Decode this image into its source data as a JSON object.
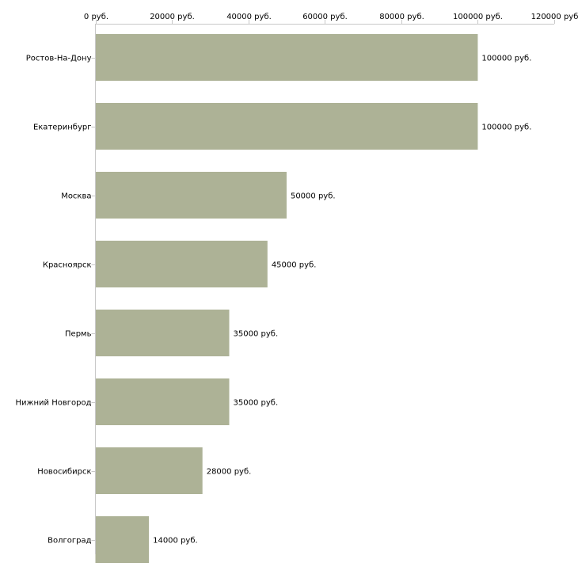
{
  "chart_data": {
    "type": "bar",
    "orientation": "horizontal",
    "categories": [
      "Ростов-На-Дону",
      "Екатеринбург",
      "Москва",
      "Красноярск",
      "Пермь",
      "Нижний Новгород",
      "Новосибирск",
      "Волгоград"
    ],
    "values": [
      100000,
      100000,
      50000,
      45000,
      35000,
      35000,
      28000,
      14000
    ],
    "value_labels": [
      "100000 руб.",
      "100000 руб.",
      "50000 руб.",
      "45000 руб.",
      "35000 руб.",
      "35000 руб.",
      "28000 руб.",
      "14000 руб."
    ],
    "x_ticks": [
      0,
      20000,
      40000,
      60000,
      80000,
      100000,
      120000
    ],
    "x_tick_labels": [
      "0 руб.",
      "20000 руб.",
      "40000 руб.",
      "60000 руб.",
      "80000 руб.",
      "100000 руб.",
      "120000 руб"
    ],
    "xlim": [
      0,
      120000
    ],
    "axis_position": "top",
    "grid": false,
    "bar_color": "#adb296",
    "axis_color": "#c8c8c8",
    "title": "",
    "xlabel": "",
    "ylabel": ""
  }
}
